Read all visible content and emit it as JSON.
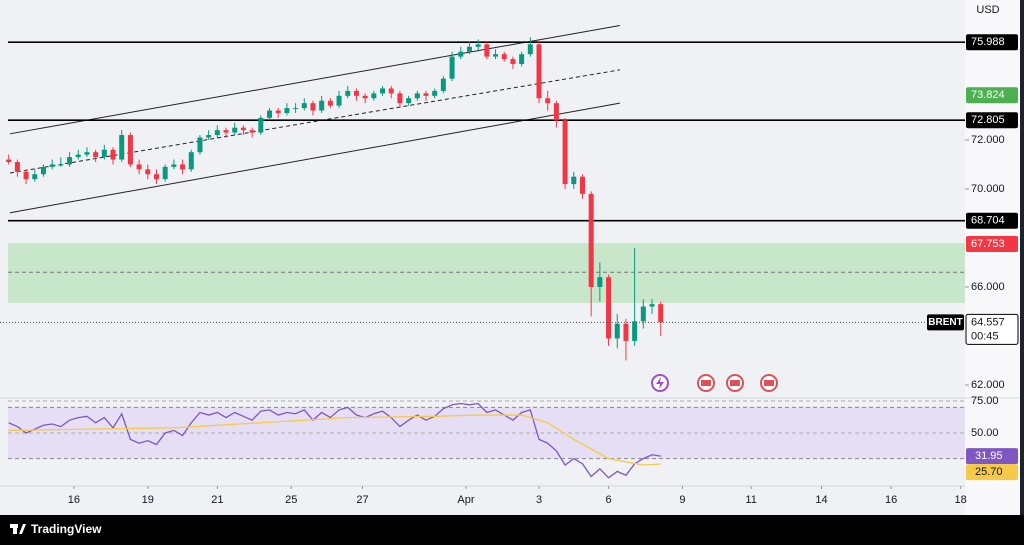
{
  "chart_data": {
    "type": "candlestick",
    "currency": "USD",
    "symbol": "BRENT",
    "countdown": "00:45",
    "up_color": "#089981",
    "down_color": "#f23645",
    "xlim": [
      0,
      111
    ],
    "xticks": [
      {
        "value": 8.5,
        "label": "16"
      },
      {
        "value": 17,
        "label": "19"
      },
      {
        "value": 25,
        "label": "21"
      },
      {
        "value": 33.5,
        "label": "25"
      },
      {
        "value": 41.7,
        "label": "27"
      },
      {
        "value": 53.6,
        "label": "Apr"
      },
      {
        "value": 62,
        "label": "3"
      },
      {
        "value": 70,
        "label": "6"
      },
      {
        "value": 78.5,
        "label": "9"
      },
      {
        "value": 86.4,
        "label": "11"
      },
      {
        "value": 94.5,
        "label": "14"
      },
      {
        "value": 102.5,
        "label": "16"
      },
      {
        "value": 110.5,
        "label": "18"
      }
    ],
    "ylim": [
      61.47,
      77.71
    ],
    "yticks": [
      {
        "value": 62,
        "label": "62.000"
      },
      {
        "value": 66,
        "label": "66.000"
      },
      {
        "value": 70,
        "label": "70.000"
      },
      {
        "value": 72,
        "label": "72.000"
      }
    ],
    "x": [
      1,
      2,
      3,
      4,
      5,
      6,
      7,
      8,
      9,
      10,
      11,
      12,
      13,
      14,
      15,
      16,
      17,
      18,
      19,
      20,
      21,
      22,
      23,
      24,
      25,
      26,
      27,
      28,
      29,
      30,
      31,
      32,
      33,
      34,
      35,
      36,
      37,
      38,
      39,
      40,
      41,
      42,
      43,
      44,
      45,
      46,
      47,
      48,
      49,
      50,
      51,
      52,
      53,
      54,
      55,
      56,
      57,
      58,
      59,
      60,
      61,
      62,
      63,
      64,
      65,
      66,
      67,
      68,
      69,
      70,
      71,
      72,
      73,
      74,
      75,
      76
    ],
    "candles": [
      [
        71.2,
        71.4,
        71.0,
        71.1
      ],
      [
        71.1,
        71.2,
        70.5,
        70.7
      ],
      [
        70.7,
        70.8,
        70.2,
        70.4
      ],
      [
        70.4,
        70.8,
        70.3,
        70.6
      ],
      [
        70.6,
        71.0,
        70.5,
        70.9
      ],
      [
        70.9,
        71.2,
        70.8,
        71.0
      ],
      [
        71.0,
        71.3,
        70.9,
        71.0
      ],
      [
        71.0,
        71.5,
        70.9,
        71.3
      ],
      [
        71.3,
        71.6,
        71.2,
        71.4
      ],
      [
        71.4,
        71.7,
        71.3,
        71.5
      ],
      [
        71.5,
        71.6,
        71.1,
        71.3
      ],
      [
        71.3,
        71.8,
        71.2,
        71.6
      ],
      [
        71.6,
        71.7,
        71.0,
        71.2
      ],
      [
        71.2,
        72.4,
        71.1,
        72.2
      ],
      [
        72.2,
        72.3,
        70.9,
        71.0
      ],
      [
        71.0,
        71.2,
        70.6,
        70.8
      ],
      [
        70.8,
        71.0,
        70.4,
        70.6
      ],
      [
        70.6,
        70.8,
        70.2,
        70.4
      ],
      [
        70.4,
        71.0,
        70.3,
        70.9
      ],
      [
        70.9,
        71.2,
        70.8,
        71.0
      ],
      [
        71.0,
        71.2,
        70.6,
        70.8
      ],
      [
        70.8,
        71.6,
        70.7,
        71.5
      ],
      [
        71.5,
        72.2,
        71.4,
        72.1
      ],
      [
        72.1,
        72.4,
        72.0,
        72.2
      ],
      [
        72.2,
        72.6,
        72.1,
        72.4
      ],
      [
        72.4,
        72.5,
        72.1,
        72.3
      ],
      [
        72.3,
        72.7,
        72.2,
        72.5
      ],
      [
        72.5,
        72.6,
        72.2,
        72.4
      ],
      [
        72.4,
        72.5,
        72.1,
        72.3
      ],
      [
        72.3,
        73.0,
        72.2,
        72.9
      ],
      [
        72.9,
        73.3,
        72.8,
        73.2
      ],
      [
        73.2,
        73.3,
        72.9,
        73.1
      ],
      [
        73.1,
        73.5,
        73.0,
        73.3
      ],
      [
        73.3,
        73.5,
        73.1,
        73.3
      ],
      [
        73.3,
        73.7,
        73.2,
        73.5
      ],
      [
        73.5,
        73.6,
        73.0,
        73.2
      ],
      [
        73.2,
        73.8,
        73.1,
        73.6
      ],
      [
        73.6,
        73.7,
        73.3,
        73.4
      ],
      [
        73.4,
        74.0,
        73.3,
        73.8
      ],
      [
        73.8,
        74.2,
        73.7,
        74.0
      ],
      [
        74.0,
        74.1,
        73.6,
        73.8
      ],
      [
        73.8,
        73.9,
        73.5,
        73.7
      ],
      [
        73.7,
        74.0,
        73.6,
        73.9
      ],
      [
        73.9,
        74.2,
        73.8,
        74.1
      ],
      [
        74.1,
        74.2,
        73.7,
        73.9
      ],
      [
        73.9,
        74.0,
        73.3,
        73.5
      ],
      [
        73.5,
        73.8,
        73.4,
        73.7
      ],
      [
        73.7,
        74.0,
        73.6,
        73.9
      ],
      [
        73.9,
        74.0,
        73.6,
        73.8
      ],
      [
        73.8,
        74.1,
        73.7,
        74.0
      ],
      [
        74.0,
        74.6,
        73.9,
        74.5
      ],
      [
        74.5,
        75.6,
        74.4,
        75.4
      ],
      [
        75.4,
        75.8,
        75.3,
        75.6
      ],
      [
        75.6,
        76.0,
        75.5,
        75.8
      ],
      [
        75.8,
        76.1,
        75.6,
        75.9
      ],
      [
        75.9,
        76.0,
        75.3,
        75.4
      ],
      [
        75.4,
        75.7,
        75.3,
        75.5
      ],
      [
        75.5,
        75.6,
        75.2,
        75.3
      ],
      [
        75.3,
        75.4,
        74.9,
        75.1
      ],
      [
        75.1,
        75.6,
        75.0,
        75.5
      ],
      [
        75.5,
        76.2,
        75.4,
        75.9
      ],
      [
        75.9,
        76.0,
        73.5,
        73.7
      ],
      [
        73.7,
        74.0,
        73.2,
        73.5
      ],
      [
        73.5,
        73.6,
        72.5,
        72.8
      ],
      [
        72.8,
        72.9,
        70.0,
        70.2
      ],
      [
        70.2,
        70.7,
        70.0,
        70.5
      ],
      [
        70.5,
        70.6,
        69.6,
        69.8
      ],
      [
        69.8,
        69.9,
        64.8,
        66.0
      ],
      [
        66.0,
        67.0,
        65.4,
        66.4
      ],
      [
        66.4,
        66.5,
        63.6,
        63.9
      ],
      [
        63.9,
        64.9,
        63.5,
        64.5
      ],
      [
        64.5,
        64.7,
        63.0,
        63.8
      ],
      [
        63.8,
        67.6,
        63.6,
        64.6
      ],
      [
        64.6,
        65.5,
        64.3,
        65.2
      ],
      [
        65.2,
        65.5,
        64.9,
        65.3
      ],
      [
        65.3,
        65.4,
        64.0,
        64.557
      ]
    ],
    "levels": [
      75.988,
      72.805,
      68.704
    ],
    "markers": [
      {
        "value": 73.824,
        "color": "#4caf50"
      },
      {
        "value": 67.753,
        "color": "#f23645"
      }
    ],
    "zone": [
      65.35,
      67.79
    ],
    "zone_mid": 66.6,
    "channel": {
      "x": [
        1.15,
        71.3
      ],
      "upper": [
        72.25,
        76.67
      ],
      "middle": [
        70.65,
        74.86
      ],
      "lower": [
        69.03,
        73.5
      ]
    },
    "rsi": {
      "color": "#7e57c2",
      "ylim": [
        9.4,
        77.3
      ],
      "band": [
        30,
        70
      ],
      "yticks": [
        {
          "value": 75,
          "label": "75.00"
        },
        {
          "value": 50,
          "label": "50.00"
        }
      ],
      "values": [
        58,
        55,
        50,
        53,
        56,
        57,
        55,
        60,
        62,
        63,
        58,
        62,
        54,
        65,
        45,
        42,
        44,
        41,
        50,
        52,
        48,
        58,
        66,
        64,
        66,
        62,
        66,
        63,
        60,
        67,
        68,
        64,
        66,
        65,
        68,
        60,
        66,
        62,
        68,
        70,
        64,
        62,
        65,
        67,
        62,
        55,
        60,
        64,
        60,
        63,
        69,
        72,
        73,
        72,
        73,
        66,
        68,
        64,
        60,
        66,
        68,
        45,
        42,
        36,
        25,
        30,
        26,
        16,
        22,
        15,
        20,
        17,
        26,
        30,
        33,
        31.95
      ],
      "ma": {
        "color": "#f7c948",
        "x": [
          1,
          10,
          20,
          30,
          40,
          50,
          55,
          60,
          63,
          66,
          70,
          74,
          76
        ],
        "values": [
          52,
          53,
          54,
          58,
          62,
          63,
          64,
          64,
          58,
          45,
          30,
          25,
          25.7
        ],
        "value_labels": [
          null,
          null,
          null,
          null,
          null,
          null,
          null,
          null,
          null,
          null,
          null,
          null,
          "25.70"
        ]
      }
    }
  },
  "footer": {
    "brand": "TradingView"
  }
}
